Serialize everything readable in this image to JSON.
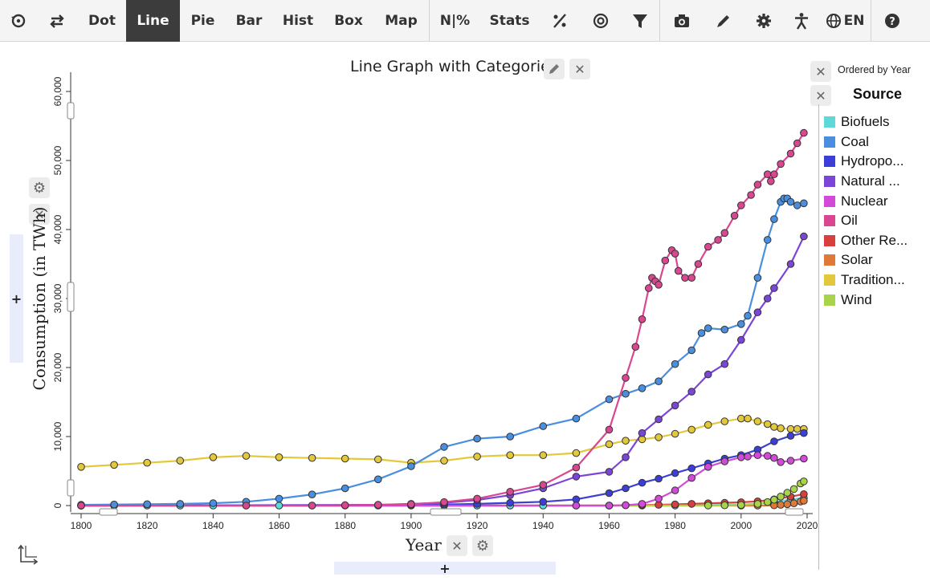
{
  "toolbar": {
    "items": [
      {
        "kind": "icon",
        "icon": "reset-icon",
        "w": 45
      },
      {
        "kind": "icon",
        "icon": "swap-icon",
        "w": 52
      },
      {
        "kind": "text",
        "label": "Dot",
        "w": 60
      },
      {
        "kind": "text",
        "label": "Line",
        "w": 67,
        "active": true
      },
      {
        "kind": "text",
        "label": "Pie",
        "w": 57
      },
      {
        "kind": "text",
        "label": "Bar",
        "w": 58
      },
      {
        "kind": "text",
        "label": "Hist",
        "w": 64
      },
      {
        "kind": "text",
        "label": "Box",
        "w": 62
      },
      {
        "kind": "text",
        "label": "Map",
        "w": 69
      },
      {
        "kind": "text",
        "label": "N|%",
        "w": 64,
        "sep": true
      },
      {
        "kind": "text",
        "label": "Stats",
        "w": 73
      },
      {
        "kind": "icon",
        "icon": "percent-icon",
        "w": 52
      },
      {
        "kind": "icon",
        "icon": "target-icon",
        "w": 50
      },
      {
        "kind": "icon",
        "icon": "filter-icon",
        "w": 48
      },
      {
        "kind": "icon",
        "icon": "camera-icon",
        "w": 54,
        "sep": true
      },
      {
        "kind": "icon",
        "icon": "pen-icon",
        "w": 52
      },
      {
        "kind": "icon",
        "icon": "gear-icon",
        "w": 48
      },
      {
        "kind": "icon",
        "icon": "accessibility-icon",
        "w": 45
      },
      {
        "kind": "text",
        "label": "EN",
        "icon": "globe-icon",
        "w": 64
      },
      {
        "kind": "icon",
        "icon": "help-icon",
        "w": 53,
        "sep": true
      }
    ]
  },
  "ordered_by": "Ordered by Year",
  "chart_data": {
    "type": "line",
    "title": "Line Graph with Categories",
    "xlabel": "Year",
    "ylabel": "Consumption (in TWh)",
    "xlim": [
      1800,
      2020
    ],
    "ylim": [
      0,
      60000
    ],
    "x_ticks": [
      1800,
      1820,
      1840,
      1860,
      1880,
      1900,
      1920,
      1940,
      1960,
      1980,
      2000,
      2020
    ],
    "y_ticks": [
      0,
      10000,
      20000,
      30000,
      40000,
      50000,
      60000
    ],
    "grid": false,
    "legend": {
      "title": "Source",
      "position": "right"
    },
    "series": [
      {
        "name": "Biofuels",
        "color": "#5ed8d8",
        "x": [
          1800,
          1810,
          1820,
          1830,
          1840,
          1850,
          1860,
          1870,
          1880,
          1890,
          1900,
          1910,
          1920,
          1930,
          1940,
          1950,
          1960,
          1970,
          1980,
          1990,
          2000,
          2005,
          2010,
          2015,
          2019
        ],
        "y": [
          0,
          0,
          0,
          0,
          0,
          0,
          0,
          0,
          0,
          0,
          0,
          0,
          0,
          0,
          0,
          0,
          0,
          0,
          10,
          70,
          130,
          250,
          550,
          850,
          1100
        ]
      },
      {
        "name": "Coal",
        "color": "#4a8fdf",
        "x": [
          1800,
          1810,
          1820,
          1830,
          1840,
          1850,
          1860,
          1870,
          1880,
          1890,
          1900,
          1910,
          1920,
          1930,
          1940,
          1950,
          1960,
          1965,
          1970,
          1975,
          1980,
          1985,
          1988,
          1990,
          1995,
          2000,
          2002,
          2005,
          2008,
          2010,
          2012,
          2013,
          2014,
          2015,
          2017,
          2019
        ],
        "y": [
          100,
          150,
          200,
          250,
          350,
          550,
          1000,
          1600,
          2500,
          3800,
          5700,
          8500,
          9700,
          10000,
          11500,
          12600,
          15400,
          16200,
          17000,
          18000,
          20500,
          22500,
          25000,
          25700,
          25500,
          26300,
          27500,
          33000,
          38500,
          41500,
          44000,
          44500,
          44500,
          44000,
          43500,
          43800
        ]
      },
      {
        "name": "Hydropower",
        "color": "#3b3fd7",
        "x": [
          1800,
          1900,
          1910,
          1920,
          1930,
          1940,
          1950,
          1960,
          1965,
          1970,
          1975,
          1980,
          1985,
          1990,
          1995,
          2000,
          2005,
          2010,
          2015,
          2019
        ],
        "y": [
          0,
          100,
          150,
          250,
          400,
          550,
          900,
          1800,
          2500,
          3300,
          3900,
          4700,
          5400,
          6100,
          6800,
          7300,
          8100,
          9300,
          10100,
          10500
        ]
      },
      {
        "name": "Natural Gas",
        "color": "#7b45d8",
        "x": [
          1800,
          1880,
          1890,
          1900,
          1910,
          1920,
          1930,
          1940,
          1950,
          1960,
          1965,
          1970,
          1975,
          1980,
          1985,
          1990,
          1995,
          2000,
          2005,
          2008,
          2010,
          2015,
          2019
        ],
        "y": [
          0,
          50,
          100,
          250,
          400,
          800,
          1500,
          2500,
          4200,
          4900,
          7000,
          10500,
          12500,
          14500,
          16500,
          19000,
          20500,
          24000,
          28000,
          30000,
          31500,
          35000,
          39000
        ]
      },
      {
        "name": "Nuclear",
        "color": "#d14bd8",
        "x": [
          1800,
          1950,
          1960,
          1965,
          1970,
          1975,
          1980,
          1985,
          1990,
          1995,
          2000,
          2002,
          2005,
          2008,
          2010,
          2012,
          2015,
          2019
        ],
        "y": [
          0,
          0,
          0,
          50,
          250,
          1000,
          2200,
          4000,
          5600,
          6400,
          7000,
          7100,
          7300,
          7200,
          6900,
          6300,
          6500,
          6800
        ]
      },
      {
        "name": "Oil",
        "color": "#d8478f",
        "x": [
          1800,
          1850,
          1870,
          1880,
          1890,
          1900,
          1910,
          1920,
          1930,
          1940,
          1950,
          1960,
          1965,
          1968,
          1970,
          1972,
          1973,
          1974,
          1975,
          1977,
          1979,
          1980,
          1981,
          1983,
          1985,
          1987,
          1990,
          1993,
          1995,
          1998,
          2000,
          2003,
          2005,
          2008,
          2009,
          2010,
          2012,
          2015,
          2017,
          2019
        ],
        "y": [
          0,
          0,
          0,
          50,
          100,
          200,
          500,
          1000,
          2000,
          3000,
          5500,
          11000,
          18500,
          23000,
          27000,
          31500,
          33000,
          32500,
          32000,
          35500,
          37000,
          36500,
          34000,
          33000,
          33000,
          35000,
          37500,
          38500,
          39500,
          42000,
          43500,
          45000,
          46500,
          48000,
          47000,
          48000,
          49500,
          51000,
          52500,
          54000
        ]
      },
      {
        "name": "Other Renewables",
        "color": "#d84040",
        "x": [
          1800,
          1960,
          1965,
          1970,
          1975,
          1980,
          1985,
          1990,
          1995,
          2000,
          2005,
          2010,
          2015,
          2019
        ],
        "y": [
          0,
          0,
          50,
          80,
          100,
          180,
          250,
          320,
          400,
          480,
          600,
          900,
          1300,
          1650
        ]
      },
      {
        "name": "Solar",
        "color": "#e07838",
        "x": [
          1800,
          2000,
          2005,
          2010,
          2012,
          2014,
          2016,
          2018,
          2019
        ],
        "y": [
          0,
          0,
          5,
          30,
          100,
          200,
          330,
          580,
          700
        ]
      },
      {
        "name": "Traditional Biomass",
        "color": "#e4c83c",
        "x": [
          1800,
          1810,
          1820,
          1830,
          1840,
          1850,
          1860,
          1870,
          1880,
          1890,
          1900,
          1910,
          1920,
          1930,
          1940,
          1950,
          1960,
          1965,
          1970,
          1975,
          1980,
          1985,
          1990,
          1995,
          2000,
          2002,
          2005,
          2008,
          2010,
          2012,
          2015,
          2017,
          2019
        ],
        "y": [
          5600,
          5900,
          6200,
          6500,
          7000,
          7200,
          7000,
          6900,
          6800,
          6700,
          6200,
          6500,
          7100,
          7300,
          7300,
          7600,
          8900,
          9400,
          9600,
          9900,
          10400,
          11000,
          11700,
          12200,
          12600,
          12600,
          12200,
          11800,
          11400,
          11200,
          11100,
          11100,
          11100
        ]
      },
      {
        "name": "Wind",
        "color": "#a8d44a",
        "x": [
          1800,
          1990,
          1995,
          2000,
          2005,
          2008,
          2010,
          2012,
          2014,
          2016,
          2018,
          2019
        ],
        "y": [
          0,
          10,
          30,
          80,
          250,
          500,
          850,
          1300,
          1850,
          2400,
          3200,
          3500
        ]
      }
    ]
  },
  "legend_labels": [
    "Biofuels",
    "Coal",
    "Hydropo...",
    "Natural ...",
    "Nuclear",
    "Oil",
    "Other Re...",
    "Solar",
    "Tradition...",
    "Wind"
  ]
}
